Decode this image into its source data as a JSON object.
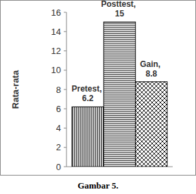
{
  "chart_data": {
    "type": "bar",
    "y_label": "Rata-rata",
    "caption": "Gambar 5.",
    "categories": [
      null,
      null,
      null
    ],
    "values": [
      6.2,
      15,
      8.8
    ],
    "value_labels": [
      "Pretest, 6.2",
      "Posttest, 15",
      "Gain, 8.8"
    ],
    "data_labels": true,
    "ylim": [
      0,
      16
    ],
    "yticks": [
      0,
      2,
      4,
      6,
      8,
      10,
      12,
      14,
      16
    ],
    "grid": false
  }
}
